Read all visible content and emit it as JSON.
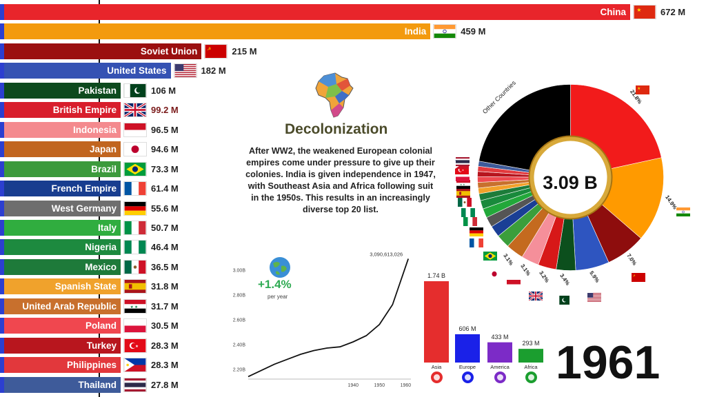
{
  "chart_data": [
    {
      "type": "bar",
      "categories": [
        "China",
        "India",
        "Soviet Union",
        "United States",
        "Pakistan",
        "British Empire",
        "Indonesia",
        "Japan",
        "Brazil",
        "French Empire",
        "West Germany",
        "Italy",
        "Nigeria",
        "Mexico",
        "Spanish State",
        "United Arab Republic",
        "Poland",
        "Turkey",
        "Philippines",
        "Thailand"
      ],
      "values": [
        672,
        459,
        215,
        182,
        106,
        99.2,
        96.5,
        94.6,
        73.3,
        61.4,
        55.6,
        50.7,
        46.4,
        36.5,
        31.8,
        31.7,
        30.5,
        28.3,
        28.3,
        27.8
      ],
      "value_labels": [
        "672 M",
        "459 M",
        "215 M",
        "182 M",
        "106 M",
        "99.2 M",
        "96.5 M",
        "94.6 M",
        "73.3 M",
        "61.4 M",
        "55.6 M",
        "50.7 M",
        "46.4 M",
        "36.5 M",
        "31.8 M",
        "31.7 M",
        "30.5 M",
        "28.3 M",
        "28.3 M",
        "27.8 M"
      ],
      "colors": [
        "#e8252b",
        "#f39a0e",
        "#9b1010",
        "#3552b3",
        "#0d4a1e",
        "#d81e2c",
        "#f48a8e",
        "#c1651f",
        "#3c9a3c",
        "#183d8f",
        "#6e6e6e",
        "#30ad3f",
        "#1d8a3f",
        "#1e7a3a",
        "#f0a22c",
        "#c8702d",
        "#f0474f",
        "#b8161e",
        "#e2383c",
        "#3e5b9a"
      ],
      "unit": "M"
    },
    {
      "type": "pie",
      "total_label": "3.09 B",
      "slices": [
        {
          "label": "21.8%",
          "value": 21.8,
          "color": "#f21b1b"
        },
        {
          "label": "14.9%",
          "value": 14.9,
          "color": "#ff9a00"
        },
        {
          "label": "7.0%",
          "value": 7.0,
          "color": "#8e0d0d"
        },
        {
          "label": "5.9%",
          "value": 5.9,
          "color": "#2e55c0"
        },
        {
          "label": "3.4%",
          "value": 3.4,
          "color": "#0c4f1d"
        },
        {
          "label": "3.2%",
          "value": 3.2,
          "color": "#d71818"
        },
        {
          "label": "3.1%",
          "value": 3.1,
          "color": "#f58f9a"
        },
        {
          "label": "3.1%",
          "value": 3.1,
          "color": "#c46a1f"
        },
        {
          "label": "",
          "value": 2.4,
          "color": "#3b9e3b"
        },
        {
          "label": "",
          "value": 2.0,
          "color": "#1a3f95"
        },
        {
          "label": "",
          "value": 1.8,
          "color": "#555555"
        },
        {
          "label": "",
          "value": 1.6,
          "color": "#22a83a"
        },
        {
          "label": "",
          "value": 1.5,
          "color": "#198a3c"
        },
        {
          "label": "",
          "value": 1.2,
          "color": "#1d7c3a"
        },
        {
          "label": "",
          "value": 1.0,
          "color": "#f2a12a"
        },
        {
          "label": "",
          "value": 1.0,
          "color": "#c8702d"
        },
        {
          "label": "",
          "value": 1.0,
          "color": "#ef4a50"
        },
        {
          "label": "",
          "value": 0.9,
          "color": "#b7151e"
        },
        {
          "label": "",
          "value": 0.9,
          "color": "#e33a3e"
        },
        {
          "label": "",
          "value": 0.9,
          "color": "#3e5b9a"
        },
        {
          "label": "Other Countries",
          "value": 22.4,
          "color": "#000000"
        }
      ]
    },
    {
      "type": "line",
      "x": [
        1900,
        1905,
        1910,
        1915,
        1920,
        1925,
        1930,
        1935,
        1940,
        1945,
        1950,
        1955,
        1961
      ],
      "y": [
        2.14,
        2.19,
        2.24,
        2.28,
        2.32,
        2.35,
        2.37,
        2.38,
        2.42,
        2.47,
        2.56,
        2.72,
        3.09
      ],
      "xticks": [
        "1940",
        "1950",
        "1960"
      ],
      "yticks": [
        "2.20B",
        "2.40B",
        "2.60B",
        "2.80B",
        "3.00B"
      ],
      "end_label": "3,090,613,026",
      "growth": "+1.4%",
      "growth_sub": "per year"
    },
    {
      "type": "bar",
      "categories": [
        "Asia",
        "Europe",
        "America",
        "Africa"
      ],
      "values": [
        1.74,
        0.606,
        0.433,
        0.293
      ],
      "value_labels": [
        "1.74 B",
        "606 M",
        "433 M",
        "293 M"
      ],
      "colors": [
        "#e52d2d",
        "#1a21e8",
        "#7c2bc7",
        "#1b9e2f"
      ]
    }
  ],
  "annotation": {
    "title": "Decolonization",
    "text": "After WW2, the weakened European colonial empires come under pressure to give up their colonies. India is given independence in 1947, with Southeast Asia and Africa following suit in the 1950s. This results in an increasingly diverse top 20 list."
  },
  "year": "1961"
}
